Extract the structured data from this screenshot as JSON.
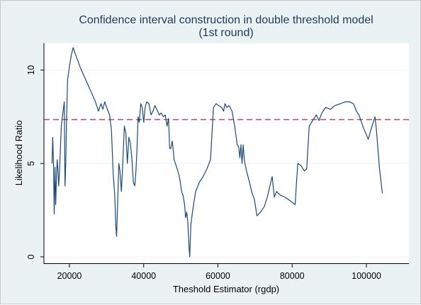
{
  "chart_data": {
    "type": "line",
    "title": "Confidence interval construction in double threshold model",
    "subtitle": "(1st round)",
    "xlabel": "Theshold Estimator (rgdp)",
    "ylabel": "Likelihood Ratio",
    "xlim": [
      14000,
      108000
    ],
    "ylim": [
      0,
      11.8
    ],
    "x_ticks": [
      {
        "value": 20000,
        "label": "20000"
      },
      {
        "value": 40000,
        "label": "40000"
      },
      {
        "value": 60000,
        "label": "60000"
      },
      {
        "value": 80000,
        "label": "80000"
      },
      {
        "value": 100000,
        "label": "100000"
      }
    ],
    "y_ticks": [
      {
        "value": 0,
        "label": "0"
      },
      {
        "value": 5,
        "label": "5"
      },
      {
        "value": 10,
        "label": "10"
      }
    ],
    "grid": true,
    "reference_line": {
      "y": 7.35,
      "color": "#c0345d",
      "style": "dashed"
    },
    "colors": {
      "series": "#1a4a7a",
      "plot_bg": "#ffffff",
      "outer_bg": "#eaf2f3",
      "grid": "#eef3f3"
    },
    "series": [
      {
        "points": [
          [
            15300,
            5.0
          ],
          [
            15500,
            6.4
          ],
          [
            15700,
            5.0
          ],
          [
            15900,
            2.3
          ],
          [
            16100,
            4.8
          ],
          [
            16300,
            2.8
          ],
          [
            16500,
            4.3
          ],
          [
            16700,
            5.2
          ],
          [
            16900,
            4.6
          ],
          [
            17100,
            3.8
          ],
          [
            17300,
            4.5
          ],
          [
            17500,
            5.5
          ],
          [
            17800,
            7.0
          ],
          [
            18100,
            7.5
          ],
          [
            18300,
            7.8
          ],
          [
            18600,
            8.3
          ],
          [
            18800,
            3.8
          ],
          [
            19000,
            5.0
          ],
          [
            19200,
            7.2
          ],
          [
            19500,
            9.5
          ],
          [
            20000,
            10.2
          ],
          [
            20500,
            10.8
          ],
          [
            21000,
            11.2
          ],
          [
            21500,
            10.9
          ],
          [
            23000,
            10.1
          ],
          [
            25000,
            9.2
          ],
          [
            27000,
            8.3
          ],
          [
            27800,
            7.8
          ],
          [
            28500,
            8.2
          ],
          [
            29000,
            7.9
          ],
          [
            29500,
            8.3
          ],
          [
            30200,
            7.9
          ],
          [
            30800,
            7.6
          ],
          [
            31300,
            6.8
          ],
          [
            31800,
            4.4
          ],
          [
            32200,
            3.3
          ],
          [
            32500,
            1.6
          ],
          [
            32700,
            1.1
          ],
          [
            33000,
            3.0
          ],
          [
            33300,
            5.0
          ],
          [
            33600,
            4.6
          ],
          [
            34000,
            3.5
          ],
          [
            34400,
            5.2
          ],
          [
            34800,
            7.0
          ],
          [
            35200,
            6.6
          ],
          [
            35600,
            5.0
          ],
          [
            36000,
            6.4
          ],
          [
            36400,
            6.1
          ],
          [
            36800,
            5.3
          ],
          [
            37200,
            4.0
          ],
          [
            37600,
            3.8
          ],
          [
            37900,
            4.6
          ],
          [
            38200,
            5.8
          ],
          [
            38500,
            7.5
          ],
          [
            38800,
            7.2
          ],
          [
            39200,
            8.2
          ],
          [
            39600,
            8.0
          ],
          [
            40000,
            7.2
          ],
          [
            40400,
            8.0
          ],
          [
            40800,
            8.3
          ],
          [
            41400,
            8.2
          ],
          [
            42000,
            7.6
          ],
          [
            42500,
            7.8
          ],
          [
            43000,
            8.1
          ],
          [
            43500,
            7.9
          ],
          [
            44200,
            7.6
          ],
          [
            44700,
            7.7
          ],
          [
            45300,
            7.5
          ],
          [
            45800,
            7.6
          ],
          [
            46300,
            7.0
          ],
          [
            46700,
            7.4
          ],
          [
            47000,
            5.8
          ],
          [
            47300,
            5.8
          ],
          [
            47700,
            6.2
          ],
          [
            48200,
            5.2
          ],
          [
            48700,
            4.9
          ],
          [
            49200,
            4.6
          ],
          [
            49700,
            4.2
          ],
          [
            50200,
            3.5
          ],
          [
            50600,
            3.3
          ],
          [
            51000,
            2.8
          ],
          [
            51300,
            2.1
          ],
          [
            51600,
            2.4
          ],
          [
            51900,
            1.8
          ],
          [
            52200,
            0.6
          ],
          [
            52400,
            0.0
          ],
          [
            52700,
            1.7
          ],
          [
            53200,
            2.5
          ],
          [
            54000,
            3.5
          ],
          [
            55000,
            4.0
          ],
          [
            56000,
            4.3
          ],
          [
            57000,
            4.7
          ],
          [
            58000,
            5.2
          ],
          [
            58800,
            8.0
          ],
          [
            59500,
            8.2
          ],
          [
            60200,
            8.1
          ],
          [
            61000,
            8.0
          ],
          [
            61500,
            7.8
          ],
          [
            61900,
            8.2
          ],
          [
            62400,
            8.0
          ],
          [
            63000,
            8.1
          ],
          [
            63800,
            7.8
          ],
          [
            64500,
            7.0
          ],
          [
            65200,
            6.0
          ],
          [
            65600,
            5.9
          ],
          [
            65900,
            5.3
          ],
          [
            66200,
            6.0
          ],
          [
            66500,
            5.0
          ],
          [
            66800,
            6.0
          ],
          [
            67100,
            5.2
          ],
          [
            67700,
            4.6
          ],
          [
            68500,
            4.0
          ],
          [
            69200,
            3.4
          ],
          [
            69800,
            3.1
          ],
          [
            70500,
            2.2
          ],
          [
            71500,
            2.4
          ],
          [
            72500,
            2.7
          ],
          [
            73300,
            3.2
          ],
          [
            74000,
            3.8
          ],
          [
            74600,
            4.3
          ],
          [
            75200,
            3.2
          ],
          [
            75800,
            3.5
          ],
          [
            76800,
            3.3
          ],
          [
            78000,
            3.2
          ],
          [
            79500,
            3.0
          ],
          [
            80800,
            2.8
          ],
          [
            81500,
            5.0
          ],
          [
            82300,
            4.9
          ],
          [
            83300,
            4.6
          ],
          [
            83900,
            4.7
          ],
          [
            84600,
            7.0
          ],
          [
            85500,
            7.3
          ],
          [
            86500,
            7.6
          ],
          [
            87200,
            7.3
          ],
          [
            88000,
            7.7
          ],
          [
            89000,
            8.0
          ],
          [
            90300,
            7.9
          ],
          [
            91500,
            8.1
          ],
          [
            93000,
            8.2
          ],
          [
            94300,
            8.3
          ],
          [
            95500,
            8.3
          ],
          [
            96500,
            8.2
          ],
          [
            97300,
            7.8
          ],
          [
            98000,
            7.6
          ],
          [
            99200,
            6.9
          ],
          [
            100500,
            6.3
          ],
          [
            101500,
            7.0
          ],
          [
            102300,
            7.5
          ],
          [
            102700,
            6.8
          ],
          [
            103500,
            4.8
          ],
          [
            104300,
            3.4
          ]
        ]
      }
    ]
  }
}
